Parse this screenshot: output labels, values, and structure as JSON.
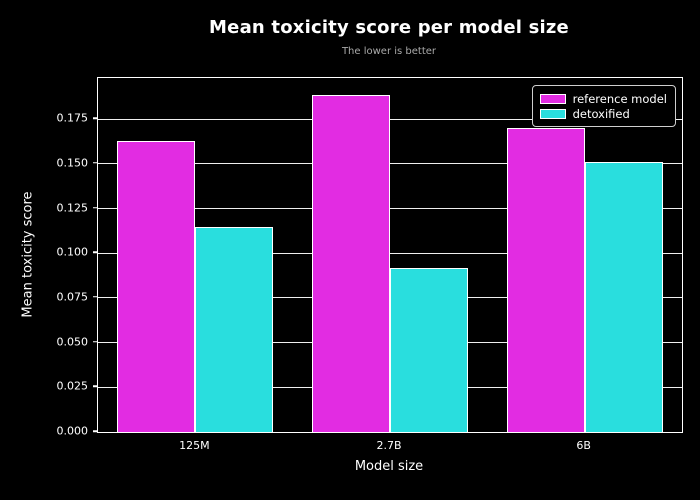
{
  "chart_data": {
    "type": "bar",
    "title": "Mean toxicity score per model size",
    "subtitle": "The lower is better",
    "xlabel": "Model size",
    "ylabel": "Mean toxicity score",
    "categories": [
      "125M",
      "2.7B",
      "6B"
    ],
    "series": [
      {
        "name": "reference model",
        "color": "#e22ce2",
        "values": [
          0.1627,
          0.1884,
          0.1699
        ]
      },
      {
        "name": "detoxified",
        "color": "#29dede",
        "values": [
          0.1148,
          0.0916,
          0.151
        ]
      }
    ],
    "ylim": [
      0,
      0.198
    ],
    "yticks": [
      "0.000",
      "0.025",
      "0.050",
      "0.075",
      "0.100",
      "0.125",
      "0.150",
      "0.175"
    ],
    "grid": "horizontal",
    "legend_position": "upper right",
    "bar_group_width_fraction": 0.8,
    "colors": {
      "background": "#000000",
      "text": "#ffffff",
      "subtitle_text": "#aaaaaa",
      "grid": "#efefef",
      "spine": "#ffffff",
      "bar_edge": "#ffffff"
    }
  }
}
